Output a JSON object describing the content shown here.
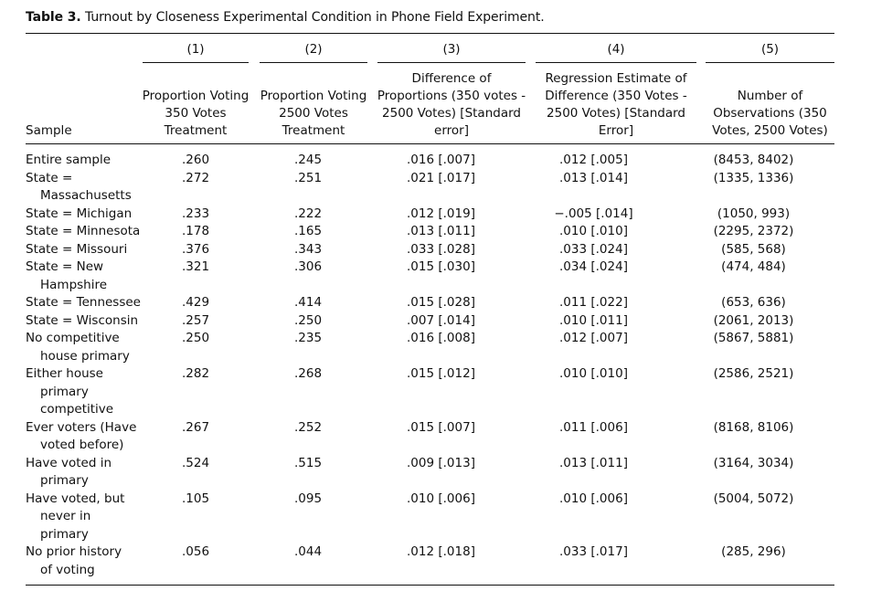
{
  "caption": {
    "label": "Table 3.",
    "text": "Turnout by Closeness Experimental Condition in Phone Field Experiment."
  },
  "columns": [
    {
      "num": "(1)",
      "header": [
        "Proportion Voting",
        "350 Votes",
        "Treatment"
      ]
    },
    {
      "num": "(2)",
      "header": [
        "Proportion Voting",
        "2500 Votes",
        "Treatment"
      ]
    },
    {
      "num": "(3)",
      "header": [
        "Difference of",
        "Proportions (350 votes -",
        "2500 Votes) [Standard",
        "error]"
      ]
    },
    {
      "num": "(4)",
      "header": [
        "Regression Estimate of",
        "Difference (350 Votes -",
        "2500 Votes) [Standard",
        "Error]"
      ]
    },
    {
      "num": "(5)",
      "header": [
        "Number of",
        "Observations (350",
        "Votes, 2500 Votes)"
      ]
    }
  ],
  "sample_header": "Sample",
  "rows": [
    {
      "label": [
        "Entire sample"
      ],
      "c1": ".260",
      "c2": ".245",
      "c3": ".016 [.007]",
      "c4": ".012 [.005]",
      "c5": "(8453, 8402)"
    },
    {
      "label": [
        "State =",
        "Massachusetts"
      ],
      "c1": ".272",
      "c2": ".251",
      "c3": ".021 [.017]",
      "c4": ".013 [.014]",
      "c5": "(1335, 1336)"
    },
    {
      "label": [
        "State = Michigan"
      ],
      "c1": ".233",
      "c2": ".222",
      "c3": ".012 [.019]",
      "c4": "−.005 [.014]",
      "c5": "(1050, 993)"
    },
    {
      "label": [
        "State = Minnesota"
      ],
      "c1": ".178",
      "c2": ".165",
      "c3": ".013 [.011]",
      "c4": ".010 [.010]",
      "c5": "(2295, 2372)"
    },
    {
      "label": [
        "State = Missouri"
      ],
      "c1": ".376",
      "c2": ".343",
      "c3": ".033 [.028]",
      "c4": ".033 [.024]",
      "c5": "(585, 568)"
    },
    {
      "label": [
        "State = New",
        "Hampshire"
      ],
      "c1": ".321",
      "c2": ".306",
      "c3": ".015 [.030]",
      "c4": ".034 [.024]",
      "c5": "(474, 484)"
    },
    {
      "label": [
        "State = Tennessee"
      ],
      "c1": ".429",
      "c2": ".414",
      "c3": ".015 [.028]",
      "c4": ".011 [.022]",
      "c5": "(653, 636)"
    },
    {
      "label": [
        "State = Wisconsin"
      ],
      "c1": ".257",
      "c2": ".250",
      "c3": ".007 [.014]",
      "c4": ".010 [.011]",
      "c5": "(2061, 2013)"
    },
    {
      "label": [
        "No competitive",
        "house primary"
      ],
      "c1": ".250",
      "c2": ".235",
      "c3": ".016 [.008]",
      "c4": ".012 [.007]",
      "c5": "(5867, 5881)"
    },
    {
      "label": [
        "Either house",
        "primary",
        "competitive"
      ],
      "c1": ".282",
      "c2": ".268",
      "c3": ".015 [.012]",
      "c4": ".010 [.010]",
      "c5": "(2586, 2521)"
    },
    {
      "label": [
        "Ever voters (Have",
        "voted before)"
      ],
      "c1": ".267",
      "c2": ".252",
      "c3": ".015 [.007]",
      "c4": ".011 [.006]",
      "c5": "(8168, 8106)"
    },
    {
      "label": [
        "Have voted in",
        "primary"
      ],
      "c1": ".524",
      "c2": ".515",
      "c3": ".009 [.013]",
      "c4": ".013 [.011]",
      "c5": "(3164, 3034)"
    },
    {
      "label": [
        "Have voted, but",
        "never in",
        "primary"
      ],
      "c1": ".105",
      "c2": ".095",
      "c3": ".010 [.006]",
      "c4": ".010 [.006]",
      "c5": "(5004, 5072)"
    },
    {
      "label": [
        "No prior history",
        "of voting"
      ],
      "c1": ".056",
      "c2": ".044",
      "c3": ".012 [.018]",
      "c4": ".033 [.017]",
      "c5": "(285, 296)"
    }
  ]
}
